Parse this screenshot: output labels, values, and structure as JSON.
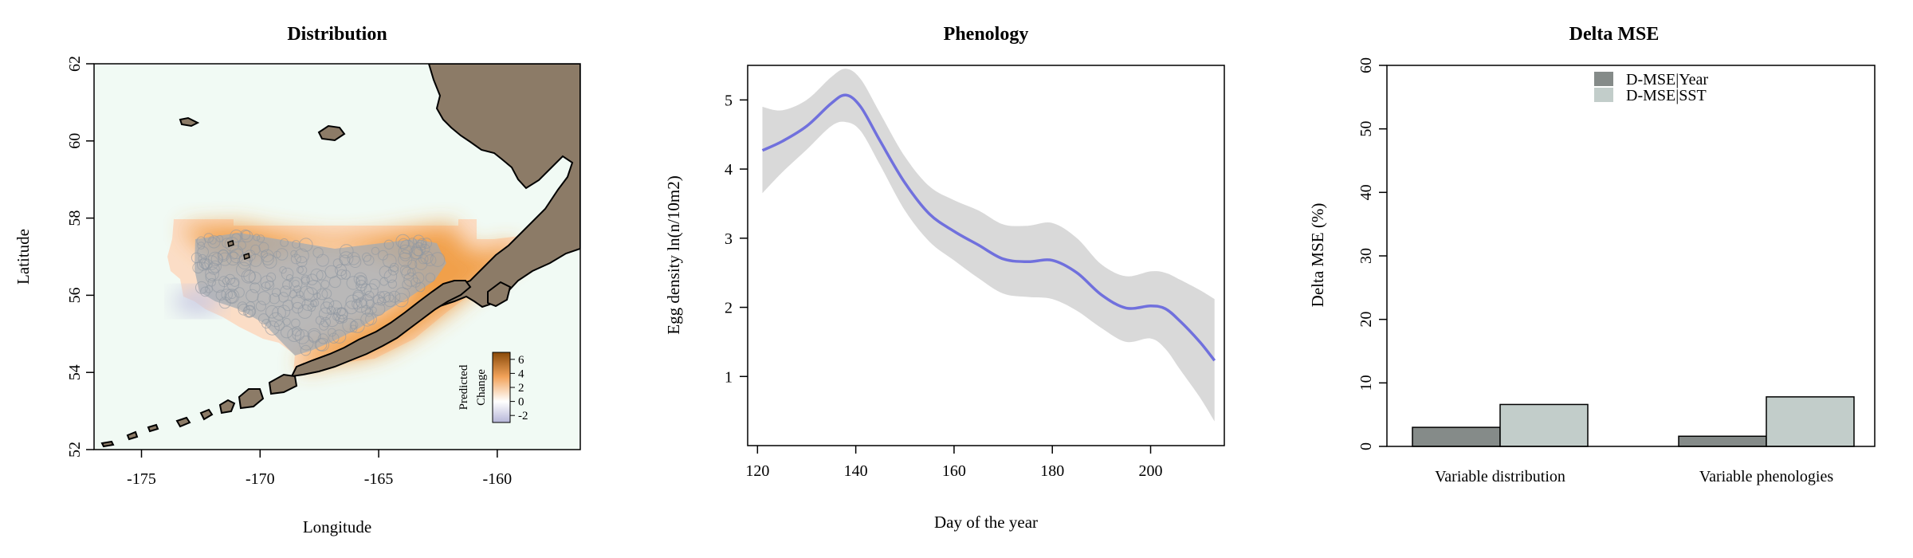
{
  "panels": {
    "distribution": {
      "title": "Distribution",
      "xlabel": "Longitude",
      "ylabel": "Latitude",
      "xticks": [
        -175,
        -170,
        -165,
        -160
      ],
      "yticks": [
        52,
        54,
        56,
        58,
        60,
        62
      ],
      "xlim": [
        -177,
        -156.5
      ],
      "ylim": [
        52,
        62
      ],
      "colorbar": {
        "label_lines": [
          "Predicted",
          "Change"
        ],
        "ticks": [
          6,
          4,
          2,
          0,
          -2
        ],
        "range": [
          -3,
          7
        ]
      },
      "colors": {
        "ocean": "#f1faf4",
        "land": "#8c7b67",
        "high": "#e8851c",
        "low": "#b9b8dc",
        "points": "#9aa3ab"
      }
    },
    "phenology": {
      "title": "Phenology",
      "xlabel": "Day of the year",
      "ylabel": "Egg density ln(n/10m2)"
    },
    "delta_mse": {
      "title": "Delta MSE",
      "ylabel": "Delta MSE (%)",
      "legend": [
        "D-MSE|Year",
        "D-MSE|SST"
      ]
    }
  },
  "chart_data": [
    {
      "type": "heatmap",
      "title": "Distribution",
      "xlabel": "Longitude",
      "ylabel": "Latitude",
      "xlim": [
        -177,
        -156.5
      ],
      "ylim": [
        52,
        62
      ],
      "colorbar_label": "Predicted Change",
      "colorbar_range": [
        -3,
        7
      ]
    },
    {
      "type": "line",
      "title": "Phenology",
      "xlabel": "Day of the year",
      "ylabel": "Egg density ln(n/10m2)",
      "xlim": [
        118,
        215
      ],
      "ylim": [
        0,
        5.5
      ],
      "xticks": [
        120,
        140,
        160,
        180,
        200
      ],
      "yticks": [
        1,
        2,
        3,
        4,
        5
      ],
      "x": [
        121,
        125,
        130,
        135,
        138,
        141,
        145,
        150,
        155,
        160,
        165,
        170,
        175,
        180,
        185,
        190,
        195,
        200,
        203,
        206,
        210,
        213
      ],
      "y": [
        4.27,
        4.4,
        4.62,
        4.95,
        5.07,
        4.9,
        4.4,
        3.8,
        3.35,
        3.1,
        2.9,
        2.7,
        2.66,
        2.68,
        2.5,
        2.18,
        1.99,
        2.02,
        1.98,
        1.8,
        1.5,
        1.23
      ],
      "lower": [
        3.65,
        3.95,
        4.28,
        4.62,
        4.68,
        4.55,
        4.05,
        3.4,
        2.95,
        2.68,
        2.42,
        2.2,
        2.15,
        2.12,
        1.95,
        1.7,
        1.5,
        1.55,
        1.4,
        1.1,
        0.7,
        0.35
      ],
      "upper": [
        4.9,
        4.85,
        5.0,
        5.33,
        5.45,
        5.3,
        4.8,
        4.18,
        3.75,
        3.55,
        3.4,
        3.2,
        3.18,
        3.22,
        3.0,
        2.62,
        2.45,
        2.52,
        2.5,
        2.4,
        2.25,
        2.12
      ],
      "line_color": "#7070dd",
      "band_color": "#d9d9d9"
    },
    {
      "type": "bar",
      "title": "Delta MSE",
      "ylabel": "Delta MSE (%)",
      "ylim": [
        0,
        60
      ],
      "yticks": [
        0,
        10,
        20,
        30,
        40,
        50,
        60
      ],
      "categories": [
        "Variable distribution",
        "Variable phenologies"
      ],
      "series": [
        {
          "name": "D-MSE|Year",
          "values": [
            3.0,
            1.6
          ],
          "color": "#858b89"
        },
        {
          "name": "D-MSE|SST",
          "values": [
            6.6,
            7.8
          ],
          "color": "#c2cdca"
        }
      ],
      "legend_position": "top-right"
    }
  ]
}
